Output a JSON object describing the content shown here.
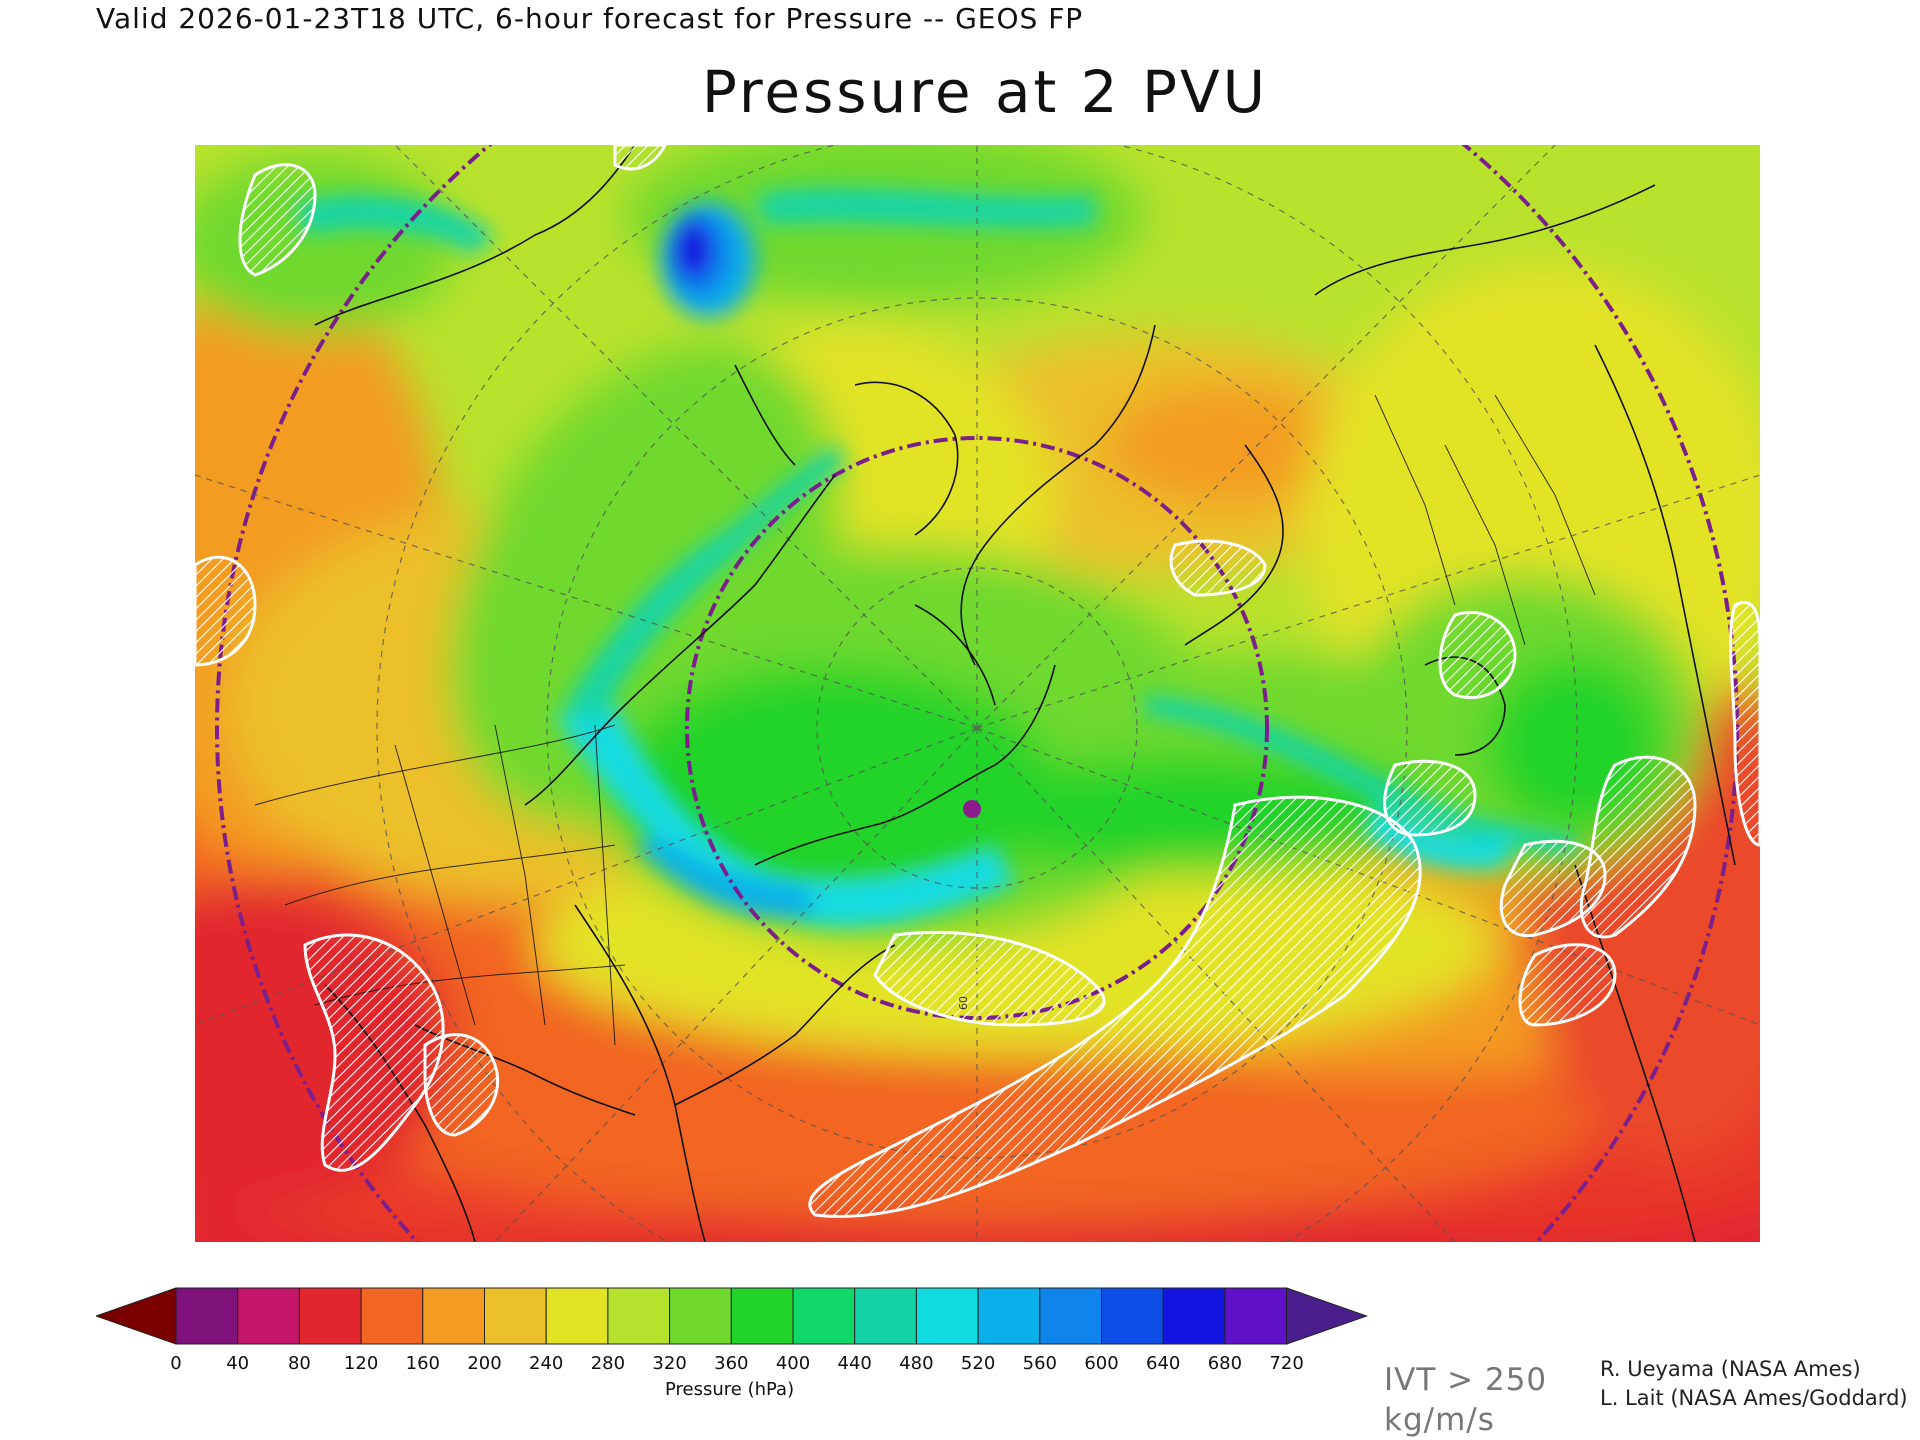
{
  "header": {
    "valid_line": "Valid 2026-01-23T18 UTC, 6-hour forecast for Pressure -- GEOS FP",
    "title": "Pressure at 2 PVU"
  },
  "map": {
    "projection": "polar stereographic, North Atlantic / North America sector",
    "marker_color": "#8b1a8b",
    "overlay_hatch_color": "#ffffff",
    "latitude_circle_color": "#7a1f8c",
    "graticule_label": "60"
  },
  "colorbar": {
    "unit_label": "Pressure (hPa)",
    "ticks": [
      "0",
      "40",
      "80",
      "120",
      "160",
      "200",
      "240",
      "280",
      "320",
      "360",
      "400",
      "440",
      "480",
      "520",
      "560",
      "600",
      "640",
      "680",
      "720"
    ],
    "under_color": "#7a0000",
    "over_color": "#4a1e8c",
    "colors": [
      "#7f117a",
      "#c5176a",
      "#e2262d",
      "#f26522",
      "#f39c21",
      "#ecc02a",
      "#e3e325",
      "#b5e22c",
      "#70d92e",
      "#22d32a",
      "#0fd869",
      "#14d4a6",
      "#12dbe0",
      "#0cb0e8",
      "#0e84ec",
      "#0c4ee6",
      "#1414e0",
      "#6010c8"
    ]
  },
  "ivt_note": {
    "line1": "IVT > 250",
    "line2": "kg/m/s"
  },
  "credits": {
    "line1": "R. Ueyama (NASA Ames)",
    "line2": "L. Lait (NASA Ames/Goddard)"
  }
}
